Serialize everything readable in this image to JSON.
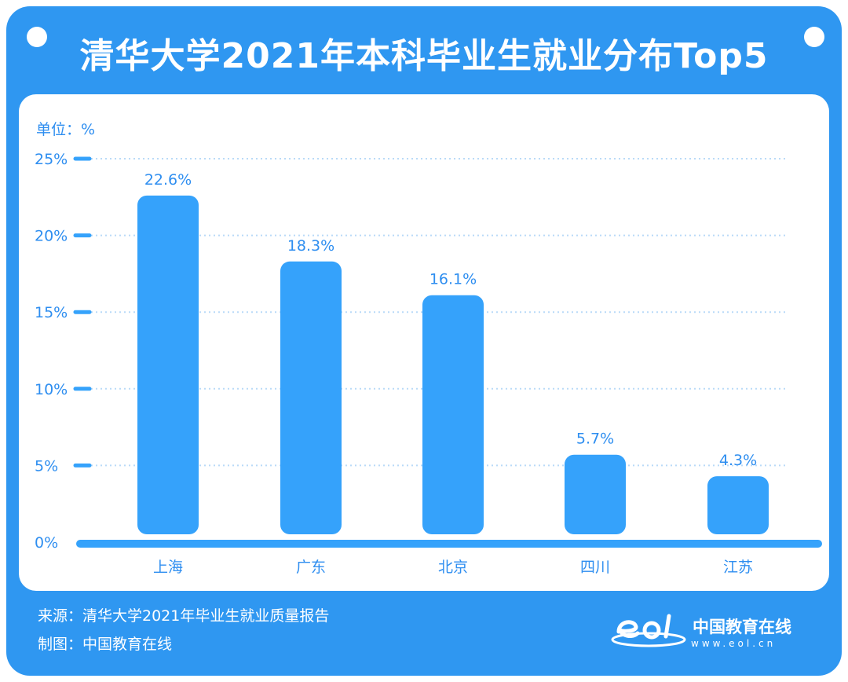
{
  "title": "清华大学2021年本科毕业生就业分布Top5",
  "unit": "单位：%",
  "footer": {
    "source": "来源：清华大学2021年毕业生就业质量报告",
    "credit": "制图：中国教育在线"
  },
  "logo": {
    "name": "中国教育在线",
    "url": "www.eol.cn"
  },
  "colors": {
    "frame": "#2f97f1",
    "bar": "#35a2fb",
    "text_blue": "#2e8ef0",
    "grid": "#b9daf8"
  },
  "chart_data": {
    "type": "bar",
    "categories": [
      "上海",
      "广东",
      "北京",
      "四川",
      "江苏"
    ],
    "values": [
      22.6,
      18.3,
      16.1,
      5.7,
      4.3
    ],
    "data_labels": [
      "22.6%",
      "18.3%",
      "16.1%",
      "5.7%",
      "4.3%"
    ],
    "ylim": [
      0,
      25
    ],
    "yticks": [
      0,
      5,
      10,
      15,
      20,
      25
    ],
    "ytick_labels": [
      "0%",
      "5%",
      "10%",
      "15%",
      "20%",
      "25%"
    ],
    "grid": true
  }
}
